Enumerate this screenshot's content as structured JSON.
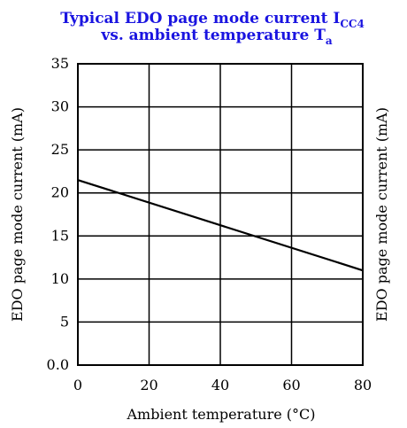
{
  "chart_data": {
    "type": "line",
    "title_line1": "Typical EDO page mode current I",
    "title_line1_sub": "CC4",
    "title_line2": "vs. ambient temperature T",
    "title_line2_sub": "a",
    "xlabel": "Ambient temperature (°C)",
    "ylabel": "EDO page mode current (mA)",
    "xlim": [
      0,
      80
    ],
    "ylim": [
      0,
      35
    ],
    "x_ticks": [
      0,
      20,
      40,
      60,
      80
    ],
    "x_tick_labels": [
      "0",
      "20",
      "40",
      "60",
      "80"
    ],
    "y_ticks": [
      0,
      5,
      10,
      15,
      20,
      25,
      30,
      35
    ],
    "y_tick_labels": [
      "0.0",
      "5",
      "10",
      "15",
      "20",
      "25",
      "30",
      "35"
    ],
    "grid": true,
    "series": [
      {
        "x": [
          0,
          80
        ],
        "y": [
          21.5,
          11.0
        ],
        "color": "#000000"
      }
    ]
  },
  "neighbor_ylabel": "EDO page mode current (mA)",
  "colors": {
    "title": "#1a14e0",
    "axes": "#000000"
  }
}
